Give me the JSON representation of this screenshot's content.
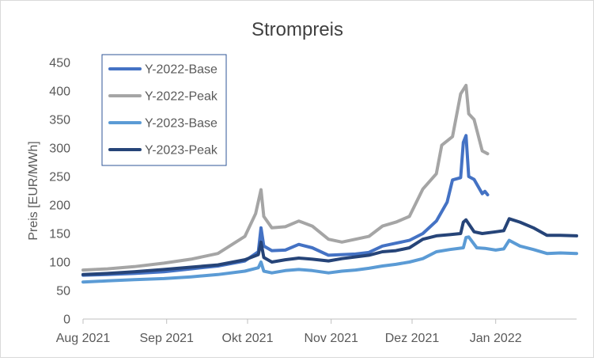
{
  "chart_data": {
    "type": "line",
    "title": "Strompreis",
    "xlabel": "",
    "ylabel": "Preis [EUR/MWh]",
    "ylim": [
      0,
      450
    ],
    "yticks": [
      0,
      50,
      100,
      150,
      200,
      250,
      300,
      350,
      400,
      450
    ],
    "x_range": [
      "2021-08-01",
      "2022-01-31"
    ],
    "xticks": [
      {
        "date": "2021-08-01",
        "label": "Aug 2021"
      },
      {
        "date": "2021-09-01",
        "label": "Sep 2021"
      },
      {
        "date": "2021-10-01",
        "label": "Okt 2021"
      },
      {
        "date": "2021-11-01",
        "label": "Nov 2021"
      },
      {
        "date": "2021-12-01",
        "label": "Dez 2021"
      },
      {
        "date": "2022-01-01",
        "label": "Jan 2022"
      }
    ],
    "grid": false,
    "legend_position": "top-left",
    "series": [
      {
        "name": "Y-2022-Base",
        "color": "#4472C4",
        "points": [
          [
            "2021-08-01",
            77
          ],
          [
            "2021-08-10",
            78
          ],
          [
            "2021-08-20",
            80
          ],
          [
            "2021-08-31",
            83
          ],
          [
            "2021-09-10",
            88
          ],
          [
            "2021-09-20",
            93
          ],
          [
            "2021-09-30",
            102
          ],
          [
            "2021-10-05",
            118
          ],
          [
            "2021-10-06",
            160
          ],
          [
            "2021-10-07",
            128
          ],
          [
            "2021-10-10",
            120
          ],
          [
            "2021-10-15",
            121
          ],
          [
            "2021-10-20",
            131
          ],
          [
            "2021-10-25",
            125
          ],
          [
            "2021-10-31",
            112
          ],
          [
            "2021-11-05",
            113
          ],
          [
            "2021-11-10",
            114
          ],
          [
            "2021-11-15",
            117
          ],
          [
            "2021-11-20",
            128
          ],
          [
            "2021-11-25",
            133
          ],
          [
            "2021-11-30",
            138
          ],
          [
            "2021-12-05",
            150
          ],
          [
            "2021-12-10",
            172
          ],
          [
            "2021-12-14",
            205
          ],
          [
            "2021-12-16",
            244
          ],
          [
            "2021-12-19",
            248
          ],
          [
            "2021-12-20",
            310
          ],
          [
            "2021-12-21",
            322
          ],
          [
            "2021-12-22",
            250
          ],
          [
            "2021-12-24",
            245
          ],
          [
            "2021-12-27",
            220
          ],
          [
            "2021-12-28",
            224
          ],
          [
            "2021-12-29",
            218
          ]
        ]
      },
      {
        "name": "Y-2022-Peak",
        "color": "#A5A5A5",
        "points": [
          [
            "2021-08-01",
            86
          ],
          [
            "2021-08-10",
            88
          ],
          [
            "2021-08-20",
            92
          ],
          [
            "2021-08-31",
            98
          ],
          [
            "2021-09-10",
            105
          ],
          [
            "2021-09-20",
            115
          ],
          [
            "2021-09-30",
            145
          ],
          [
            "2021-10-04",
            185
          ],
          [
            "2021-10-06",
            227
          ],
          [
            "2021-10-07",
            180
          ],
          [
            "2021-10-10",
            160
          ],
          [
            "2021-10-15",
            162
          ],
          [
            "2021-10-20",
            172
          ],
          [
            "2021-10-25",
            163
          ],
          [
            "2021-10-31",
            140
          ],
          [
            "2021-11-05",
            135
          ],
          [
            "2021-11-10",
            140
          ],
          [
            "2021-11-15",
            145
          ],
          [
            "2021-11-20",
            163
          ],
          [
            "2021-11-25",
            170
          ],
          [
            "2021-11-30",
            180
          ],
          [
            "2021-12-05",
            228
          ],
          [
            "2021-12-10",
            255
          ],
          [
            "2021-12-12",
            305
          ],
          [
            "2021-12-16",
            320
          ],
          [
            "2021-12-19",
            395
          ],
          [
            "2021-12-21",
            410
          ],
          [
            "2021-12-22",
            360
          ],
          [
            "2021-12-24",
            350
          ],
          [
            "2021-12-27",
            295
          ],
          [
            "2021-12-29",
            290
          ]
        ]
      },
      {
        "name": "Y-2023-Base",
        "color": "#5B9BD5",
        "points": [
          [
            "2021-08-01",
            65
          ],
          [
            "2021-08-10",
            67
          ],
          [
            "2021-08-20",
            69
          ],
          [
            "2021-08-31",
            71
          ],
          [
            "2021-09-10",
            74
          ],
          [
            "2021-09-20",
            78
          ],
          [
            "2021-09-30",
            84
          ],
          [
            "2021-10-05",
            90
          ],
          [
            "2021-10-06",
            100
          ],
          [
            "2021-10-07",
            84
          ],
          [
            "2021-10-10",
            81
          ],
          [
            "2021-10-15",
            85
          ],
          [
            "2021-10-20",
            87
          ],
          [
            "2021-10-25",
            85
          ],
          [
            "2021-10-31",
            81
          ],
          [
            "2021-11-05",
            84
          ],
          [
            "2021-11-10",
            86
          ],
          [
            "2021-11-15",
            89
          ],
          [
            "2021-11-20",
            93
          ],
          [
            "2021-11-25",
            96
          ],
          [
            "2021-11-30",
            100
          ],
          [
            "2021-12-05",
            106
          ],
          [
            "2021-12-10",
            118
          ],
          [
            "2021-12-15",
            122
          ],
          [
            "2021-12-20",
            125
          ],
          [
            "2021-12-21",
            143
          ],
          [
            "2021-12-22",
            144
          ],
          [
            "2021-12-25",
            125
          ],
          [
            "2021-12-28",
            124
          ],
          [
            "2022-01-01",
            121
          ],
          [
            "2022-01-04",
            123
          ],
          [
            "2022-01-06",
            138
          ],
          [
            "2022-01-10",
            128
          ],
          [
            "2022-01-15",
            122
          ],
          [
            "2022-01-20",
            115
          ],
          [
            "2022-01-25",
            116
          ],
          [
            "2022-01-31",
            115
          ]
        ]
      },
      {
        "name": "Y-2023-Peak",
        "color": "#264478",
        "points": [
          [
            "2021-08-01",
            78
          ],
          [
            "2021-08-10",
            80
          ],
          [
            "2021-08-20",
            83
          ],
          [
            "2021-08-31",
            87
          ],
          [
            "2021-09-10",
            91
          ],
          [
            "2021-09-20",
            95
          ],
          [
            "2021-09-30",
            104
          ],
          [
            "2021-10-05",
            113
          ],
          [
            "2021-10-06",
            135
          ],
          [
            "2021-10-07",
            108
          ],
          [
            "2021-10-10",
            100
          ],
          [
            "2021-10-15",
            104
          ],
          [
            "2021-10-20",
            107
          ],
          [
            "2021-10-25",
            105
          ],
          [
            "2021-10-31",
            102
          ],
          [
            "2021-11-05",
            106
          ],
          [
            "2021-11-10",
            109
          ],
          [
            "2021-11-15",
            112
          ],
          [
            "2021-11-20",
            118
          ],
          [
            "2021-11-25",
            120
          ],
          [
            "2021-11-30",
            125
          ],
          [
            "2021-12-05",
            140
          ],
          [
            "2021-12-10",
            146
          ],
          [
            "2021-12-15",
            148
          ],
          [
            "2021-12-19",
            150
          ],
          [
            "2021-12-20",
            170
          ],
          [
            "2021-12-21",
            174
          ],
          [
            "2021-12-24",
            153
          ],
          [
            "2021-12-27",
            150
          ],
          [
            "2022-01-01",
            153
          ],
          [
            "2022-01-04",
            155
          ],
          [
            "2022-01-06",
            176
          ],
          [
            "2022-01-10",
            170
          ],
          [
            "2022-01-15",
            160
          ],
          [
            "2022-01-20",
            147
          ],
          [
            "2022-01-25",
            147
          ],
          [
            "2022-01-31",
            146
          ]
        ]
      }
    ]
  }
}
